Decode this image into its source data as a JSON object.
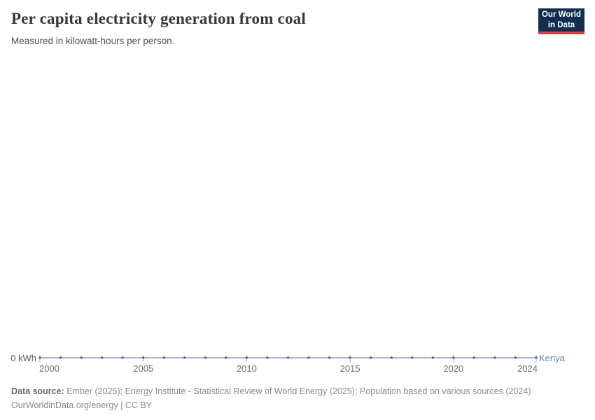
{
  "header": {
    "title": "Per capita electricity generation from coal",
    "subtitle": "Measured in kilowatt-hours per person.",
    "logo": {
      "line1": "Our World",
      "line2": "in Data",
      "bg_color": "#112e51",
      "accent_color": "#dc3e42"
    }
  },
  "chart_data": {
    "type": "line",
    "title": "Per capita electricity generation from coal",
    "subtitle": "Measured in kilowatt-hours per person.",
    "xlabel": "",
    "ylabel": "kilowatt-hours per person",
    "xlim": [
      2000,
      2024
    ],
    "ylim": [
      0,
      0
    ],
    "grid": false,
    "legend": "end-of-line entity label",
    "series": [
      {
        "name": "Kenya",
        "x": [
          2000,
          2001,
          2002,
          2003,
          2004,
          2005,
          2006,
          2007,
          2008,
          2009,
          2010,
          2011,
          2012,
          2013,
          2014,
          2015,
          2016,
          2017,
          2018,
          2019,
          2020,
          2021,
          2022,
          2023,
          2024
        ],
        "values": [
          0,
          0,
          0,
          0,
          0,
          0,
          0,
          0,
          0,
          0,
          0,
          0,
          0,
          0,
          0,
          0,
          0,
          0,
          0,
          0,
          0,
          0,
          0,
          0,
          0
        ]
      }
    ],
    "x_ticks": [
      2000,
      2005,
      2010,
      2015,
      2020,
      2024
    ],
    "x_tick_labels": [
      "2000",
      "2005",
      "2010",
      "2015",
      "2020",
      "2024"
    ],
    "y_ticks": [
      0
    ],
    "y_tick_labels": [
      "0 kWh"
    ],
    "colors": {
      "line": "#7e97c3",
      "marker": "#4c6a9c",
      "entity_label": "#5b7cb8",
      "axis_tick": "#9fb0cc",
      "tick_label": "#6e6e6e"
    }
  },
  "footer": {
    "datasource_label": "Data source:",
    "datasource_text": " Ember (2025); Energy Institute - Statistical Review of World Energy (2025); Population based on various sources (2024)",
    "attribution": "OurWorldinData.org/energy | CC BY"
  }
}
